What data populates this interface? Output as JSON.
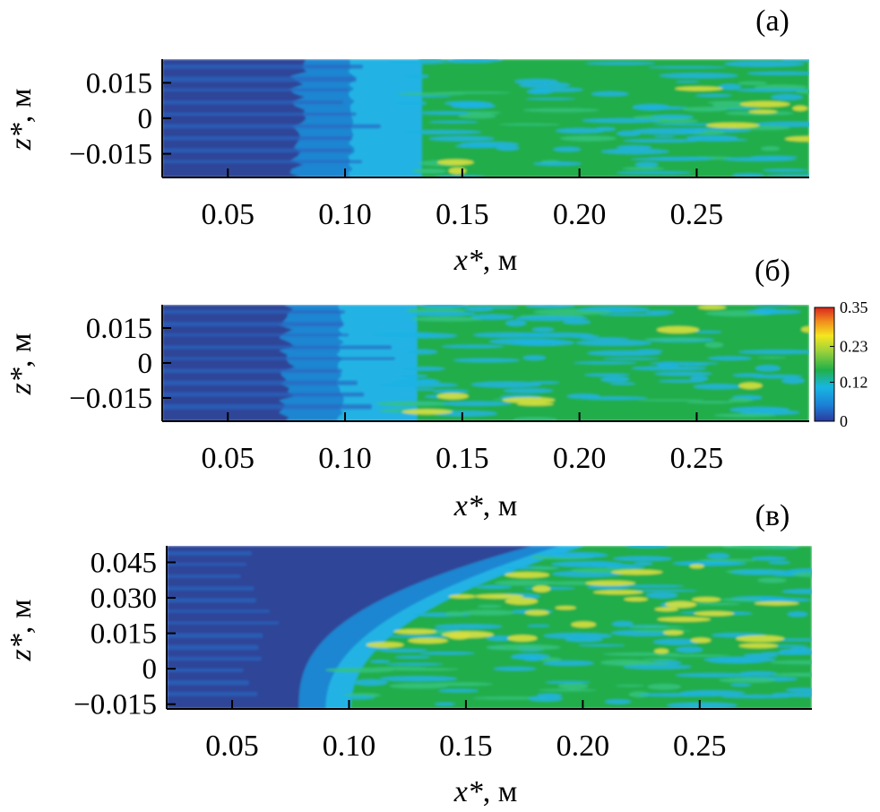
{
  "chart_data": [
    {
      "type": "heatmap",
      "panel_label": "(а)",
      "xlabel_var": "x*",
      "xlabel_unit": ", м",
      "ylabel_var": "z*",
      "ylabel_unit": ", м",
      "x_ticks": [
        "0.05",
        "0.10",
        "0.15",
        "0.20",
        "0.25"
      ],
      "x_tick_values": [
        0.05,
        0.1,
        0.15,
        0.2,
        0.25
      ],
      "y_ticks": [
        "0.015",
        "0",
        "−0.015"
      ],
      "y_tick_values": [
        0.015,
        0,
        -0.015
      ],
      "xlim": [
        0.022,
        0.298
      ],
      "ylim": [
        -0.025,
        0.025
      ],
      "transition_x": {
        "edge_values": [
          0.103,
          0.122
        ],
        "edge_profile": "flat"
      }
    },
    {
      "type": "heatmap",
      "panel_label": "(б)",
      "xlabel_var": "x*",
      "xlabel_unit": ", м",
      "ylabel_var": "z*",
      "ylabel_unit": ", м",
      "x_ticks": [
        "0.05",
        "0.10",
        "0.15",
        "0.20",
        "0.25"
      ],
      "x_tick_values": [
        0.05,
        0.1,
        0.15,
        0.2,
        0.25
      ],
      "y_ticks": [
        "0.015",
        "0",
        "−0.015"
      ],
      "y_tick_values": [
        0.015,
        0,
        -0.015
      ],
      "xlim": [
        0.022,
        0.298
      ],
      "ylim": [
        -0.025,
        0.025
      ],
      "transition_x": {
        "edge_values": [
          0.098,
          0.12
        ],
        "edge_profile": "flat"
      },
      "colorbar": {
        "tick_labels": [
          "0.35",
          "0.23",
          "0.12",
          "0"
        ],
        "tick_values": [
          0.35,
          0.23,
          0.12,
          0
        ],
        "range": [
          0,
          0.35
        ],
        "colors": [
          "#2b3a9e",
          "#1c7fd6",
          "#17b6e3",
          "#20b04a",
          "#9fd23a",
          "#f5e61f",
          "#f28a1e",
          "#d8261e"
        ]
      }
    },
    {
      "type": "heatmap",
      "panel_label": "(в)",
      "xlabel_var": "x*",
      "xlabel_unit": ", м",
      "ylabel_var": "z*",
      "ylabel_unit": ", м",
      "x_ticks": [
        "0.05",
        "0.10",
        "0.15",
        "0.20",
        "0.25"
      ],
      "x_tick_values": [
        0.05,
        0.1,
        0.15,
        0.2,
        0.25
      ],
      "y_ticks": [
        "0.045",
        "0.030",
        "0.015",
        "0",
        "−0.015"
      ],
      "y_tick_values": [
        0.045,
        0.03,
        0.015,
        0,
        -0.015
      ],
      "xlim": [
        0.022,
        0.298
      ],
      "ylim": [
        -0.017,
        0.052
      ],
      "transition_x": {
        "edge_values": [
          0.09,
          0.19
        ],
        "edge_profile": "curved"
      }
    }
  ]
}
